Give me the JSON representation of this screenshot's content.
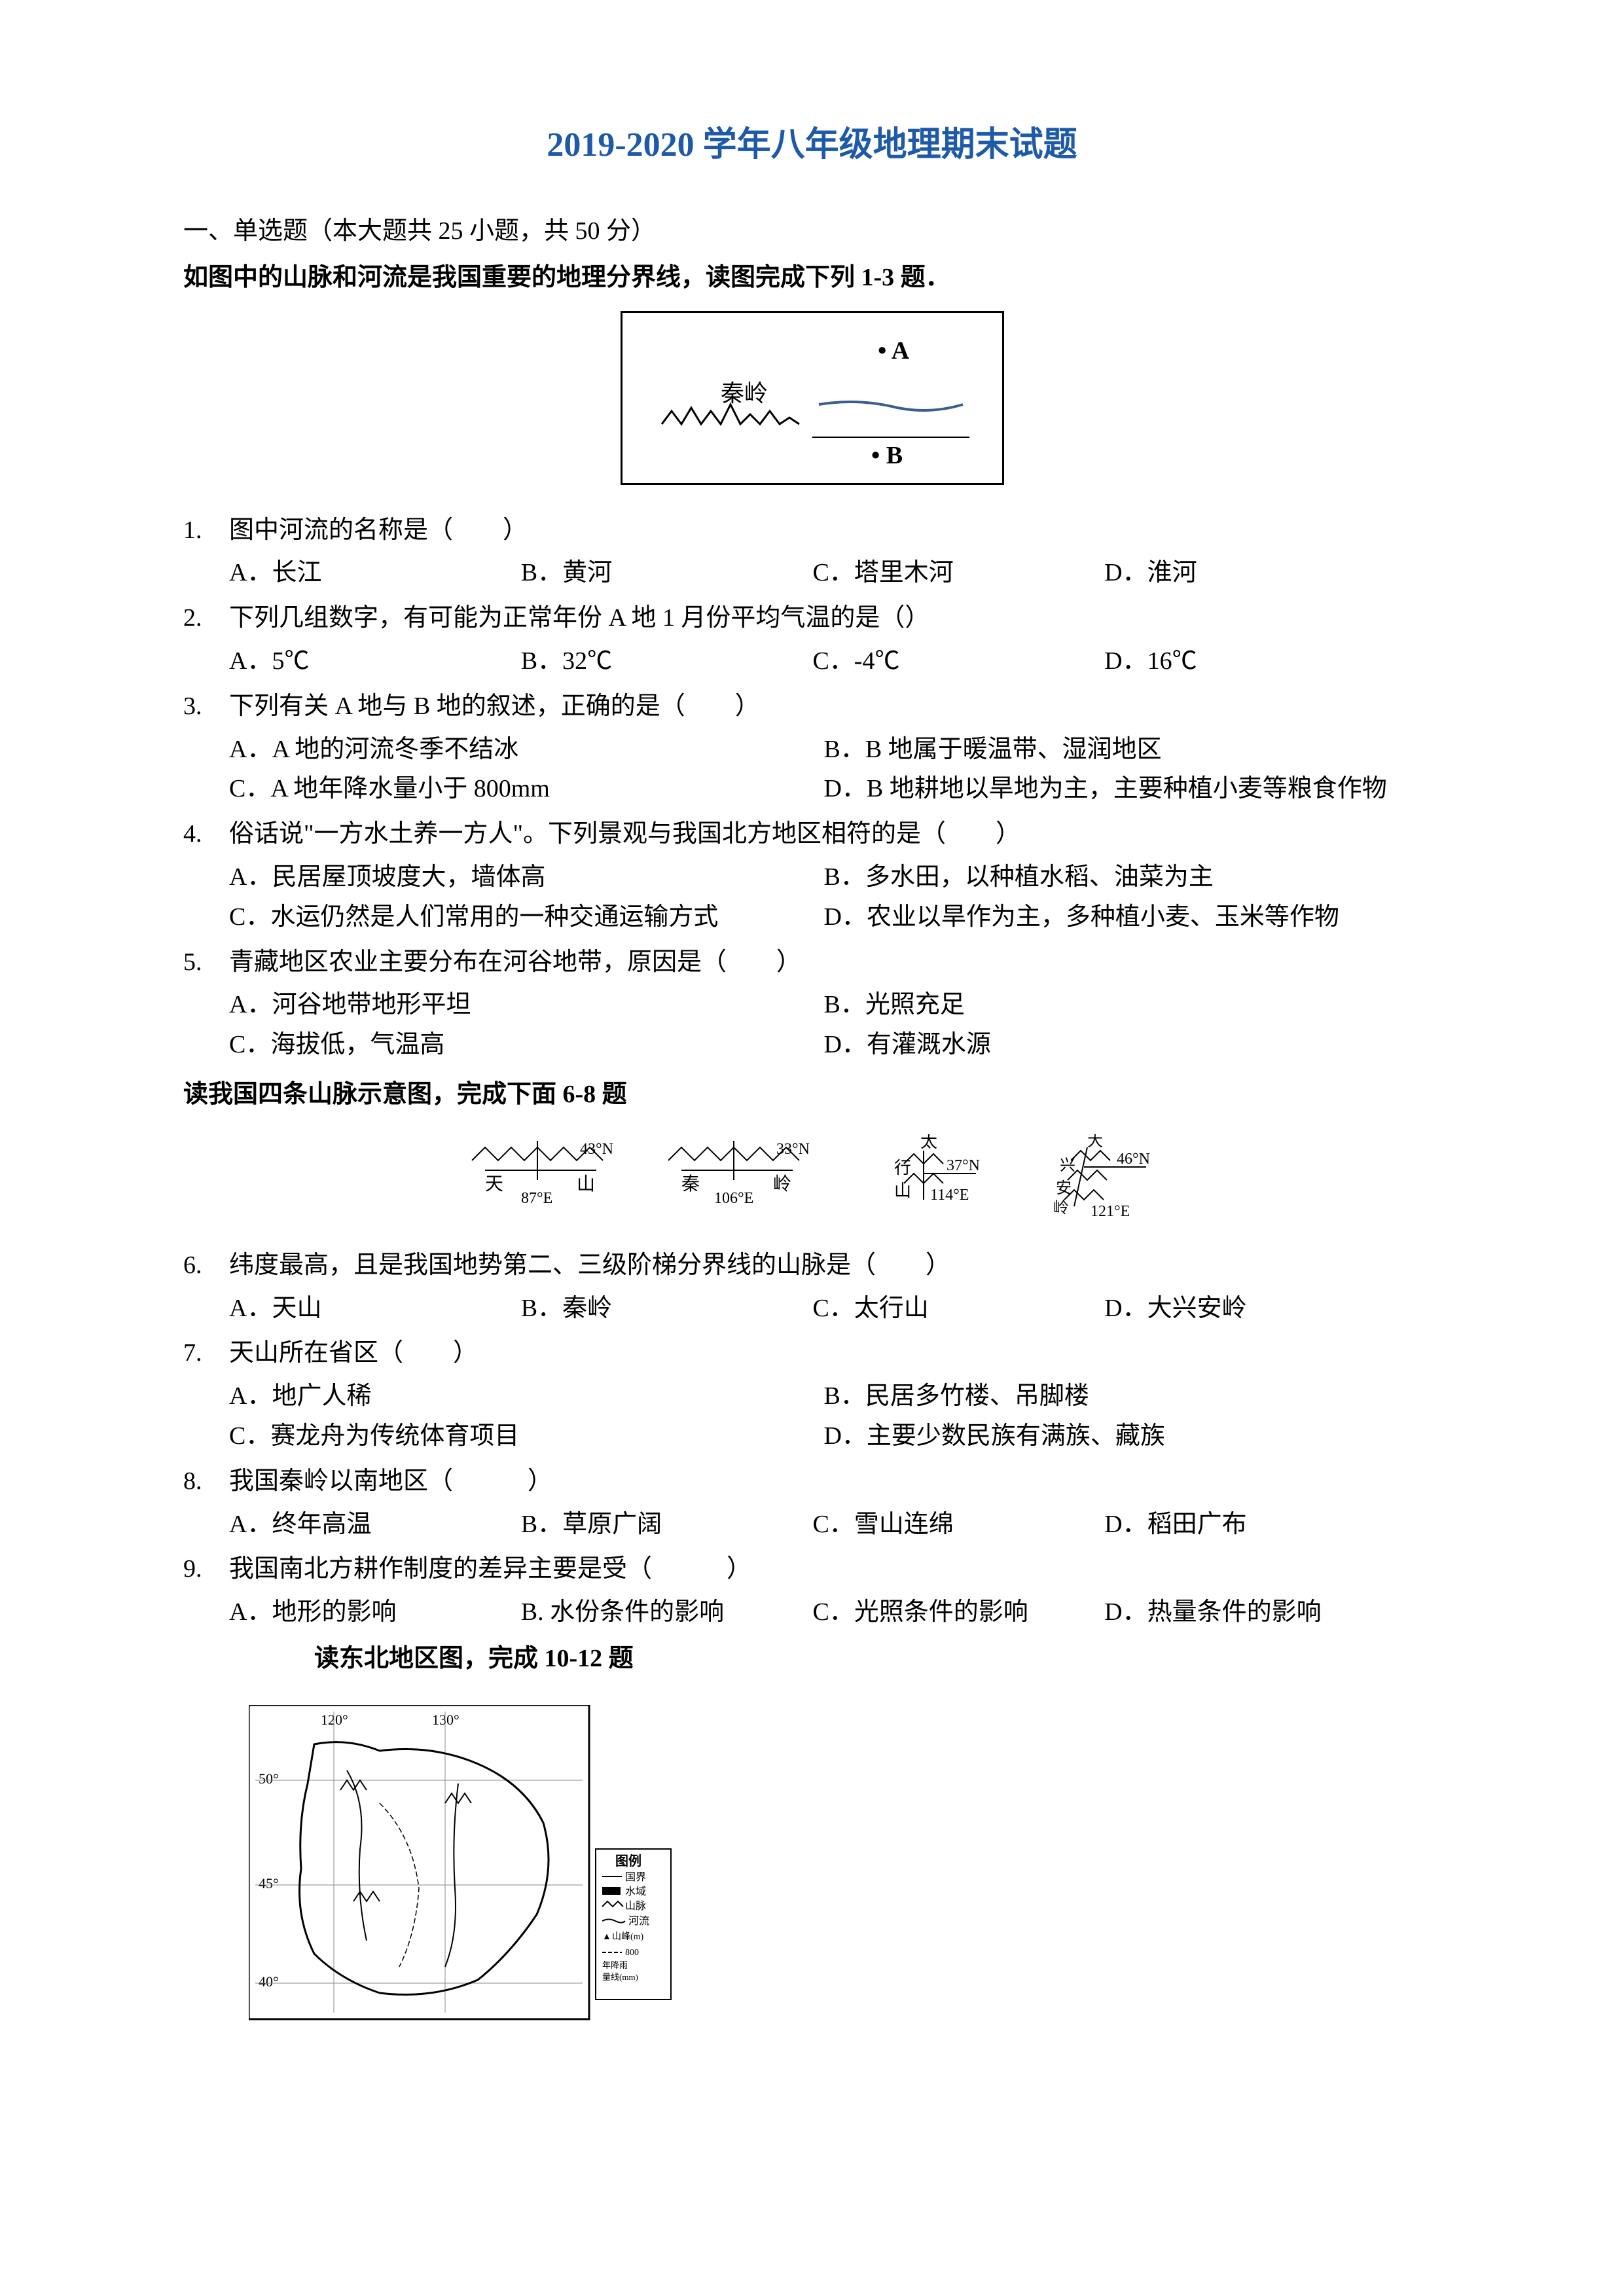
{
  "title": "2019-2020 学年八年级地理期末试题",
  "section_header": "一、单选题（本大题共 25 小题，共 50 分）",
  "instruction1": "如图中的山脉和河流是我国重要的地理分界线，读图完成下列 1-3 题．",
  "diagram1": {
    "mountain_label": "秦岭",
    "point_a": "• A",
    "point_b": "• B"
  },
  "questions": [
    {
      "num": "1.",
      "text": "图中河流的名称是（　　）",
      "layout": "4col",
      "options": [
        "A．长江",
        "B．黄河",
        "C．塔里木河",
        "D．淮河"
      ]
    },
    {
      "num": "2.",
      "text": "下列几组数字，有可能为正常年份 A 地 1 月份平均气温的是（）",
      "layout": "4col",
      "options": [
        "A．5℃",
        "B．32℃",
        "C．-4℃",
        "D．16℃"
      ]
    },
    {
      "num": "3.",
      "text": "下列有关 A 地与 B 地的叙述，正确的是（　　）",
      "layout": "2col",
      "options": [
        "A．A 地的河流冬季不结冰",
        "B．B 地属于暖温带、湿润地区",
        "C．A 地年降水量小于 800mm",
        "D．B 地耕地以旱地为主，主要种植小麦等粮食作物"
      ]
    },
    {
      "num": "4.",
      "text": "俗话说\"一方水土养一方人\"。下列景观与我国北方地区相符的是（　　）",
      "layout": "2col",
      "options": [
        "A．民居屋顶坡度大，墙体高",
        "B．多水田，以种植水稻、油菜为主",
        "C．水运仍然是人们常用的一种交通运输方式",
        "D．农业以旱作为主，多种植小麦、玉米等作物"
      ]
    },
    {
      "num": "5.",
      "text": "青藏地区农业主要分布在河谷地带，原因是（　　）",
      "layout": "2col",
      "options": [
        "A．河谷地带地形平坦",
        "B．光照充足",
        "C．海拔低，气温高",
        "D．有灌溉水源"
      ]
    }
  ],
  "instruction2": "读我国四条山脉示意图，完成下面 6-8 题",
  "mountains": [
    {
      "name": "天　山",
      "lat": "43°N",
      "lon": "87°E"
    },
    {
      "name": "秦　岭",
      "lat": "33°N",
      "lon": "106°E"
    },
    {
      "name": "太行山",
      "lat": "37°N",
      "lon": "114°E"
    },
    {
      "name": "大兴安岭",
      "lat": "46°N",
      "lon": "121°E"
    }
  ],
  "questions2": [
    {
      "num": "6.",
      "text": "纬度最高，且是我国地势第二、三级阶梯分界线的山脉是（　　）",
      "layout": "4col",
      "options": [
        "A．天山",
        "B．秦岭",
        "C．太行山",
        "D．大兴安岭"
      ]
    },
    {
      "num": "7.",
      "text": "天山所在省区（　　）",
      "layout": "2col",
      "options": [
        "A．地广人稀",
        "B．民居多竹楼、吊脚楼",
        "C．赛龙舟为传统体育项目",
        "D．主要少数民族有满族、藏族"
      ]
    },
    {
      "num": "8.",
      "text": "我国秦岭以南地区（　　　）",
      "layout": "4col",
      "options": [
        "A．终年高温",
        "B．草原广阔",
        "C．雪山连绵",
        "D．稻田广布"
      ]
    },
    {
      "num": "9.",
      "text": "我国南北方耕作制度的差异主要是受（　　　）",
      "layout": "4col",
      "options": [
        "A．地形的影响",
        "B. 水份条件的影响",
        "C．光照条件的影响",
        "D．热量条件的影响"
      ]
    }
  ],
  "instruction3": "读东北地区图，完成 10-12 题",
  "map_legend": {
    "title": "图例",
    "items": [
      "国界",
      "水域",
      "山脉",
      "河流",
      "山峰 (m)",
      "800",
      "年降雨量线 (mm)"
    ]
  },
  "map_coords": {
    "lons": [
      "120°",
      "130°"
    ],
    "lats": [
      "50°",
      "45°",
      "40°"
    ]
  },
  "colors": {
    "title_color": "#1e5aa8",
    "text_color": "#000000",
    "background": "#ffffff"
  }
}
